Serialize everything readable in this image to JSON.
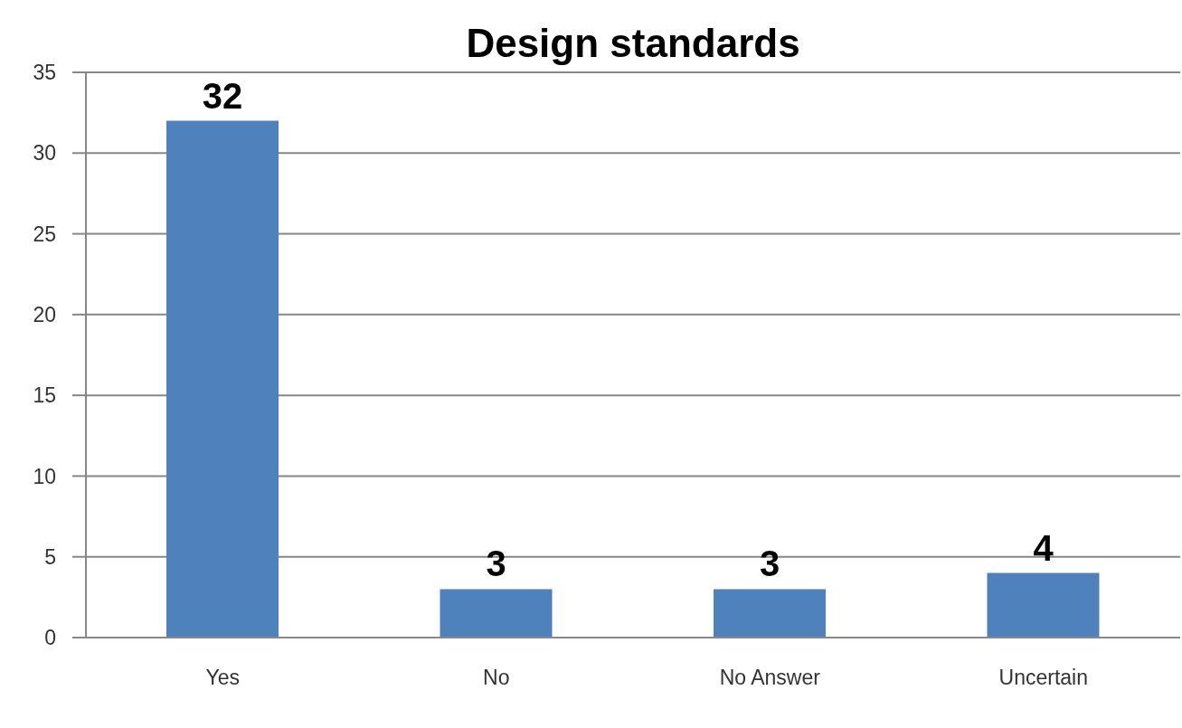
{
  "chart_data": {
    "type": "bar",
    "title": "Design standards",
    "categories": [
      "Yes",
      "No",
      "No Answer",
      "Uncertain"
    ],
    "values": [
      32,
      3,
      3,
      4
    ],
    "color": "#4f81bd",
    "ylim": [
      0,
      35
    ],
    "yticks": [
      0,
      5,
      10,
      15,
      20,
      25,
      30,
      35
    ],
    "grid": "y",
    "data_labels": true
  }
}
